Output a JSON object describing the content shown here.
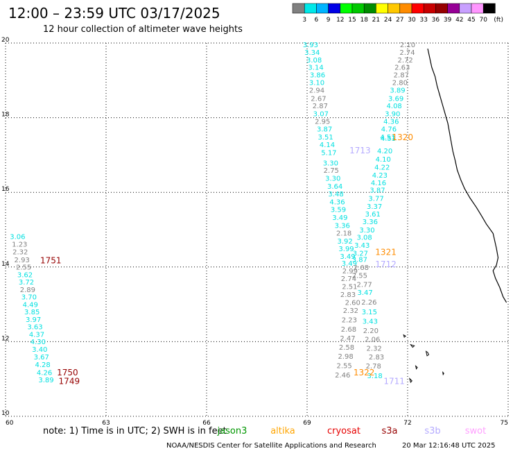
{
  "header": {
    "title": "12:00 – 23:59 UTC 03/17/2025",
    "subtitle": "12 hour collection of altimeter wave heights"
  },
  "colorbar": {
    "colors": [
      "#808080",
      "#00e8e8",
      "#00b4ff",
      "#0000e6",
      "#00ff00",
      "#00c800",
      "#008c00",
      "#ffff00",
      "#ffc800",
      "#ff8c00",
      "#ff0000",
      "#c80000",
      "#960000",
      "#960096",
      "#c8a0ff",
      "#ff96ff",
      "#000000"
    ],
    "labels": [
      "3",
      "6",
      "9",
      "12",
      "15",
      "18",
      "21",
      "24",
      "27",
      "30",
      "33",
      "36",
      "39",
      "42",
      "45",
      "70"
    ],
    "unit": "(ft)"
  },
  "footer": {
    "note": "note:  1) Time is in UTC; 2) SWH is in feet",
    "credit": "NOAA/NESDIS Center for Satellite Applications and Research",
    "timestamp": "20 Mar 12:16:48 UTC 2025"
  },
  "chart_data": {
    "type": "scatter",
    "xlim": [
      60,
      75
    ],
    "ylim": [
      10,
      20
    ],
    "x_ticks": [
      "60",
      "63",
      "66",
      "69",
      "72",
      "75"
    ],
    "y_ticks": [
      "10",
      "12",
      "14",
      "16",
      "18",
      "20"
    ],
    "grid": true,
    "legend_position": "bottom",
    "legend": [
      {
        "name": "jason3",
        "color": "#009600"
      },
      {
        "name": "altika",
        "color": "#ffa500"
      },
      {
        "name": "cryosat",
        "color": "#e60000"
      },
      {
        "name": "s3a",
        "color": "#960000"
      },
      {
        "name": "s3b",
        "color": "#b4aaff"
      },
      {
        "name": "swot",
        "color": "#ffa0ff"
      }
    ],
    "values": [
      {
        "x": 69.1,
        "y": 19.89,
        "text": "3.93",
        "color": "#00e0e0"
      },
      {
        "x": 69.15,
        "y": 19.68,
        "text": "3.34",
        "color": "#00e0e0"
      },
      {
        "x": 69.21,
        "y": 19.48,
        "text": "3.08",
        "color": "#00e0e0"
      },
      {
        "x": 69.26,
        "y": 19.28,
        "text": "3.14",
        "color": "#00e0e0"
      },
      {
        "x": 69.31,
        "y": 19.08,
        "text": "3.86",
        "color": "#00e0e0"
      },
      {
        "x": 69.29,
        "y": 18.88,
        "text": "3.10",
        "color": "#00e0e0"
      },
      {
        "x": 69.29,
        "y": 18.67,
        "text": "2.94",
        "color": "#808080"
      },
      {
        "x": 69.34,
        "y": 18.45,
        "text": "2.67",
        "color": "#808080"
      },
      {
        "x": 69.39,
        "y": 18.25,
        "text": "2.87",
        "color": "#808080"
      },
      {
        "x": 69.41,
        "y": 18.04,
        "text": "3.07",
        "color": "#00e0e0"
      },
      {
        "x": 69.46,
        "y": 17.83,
        "text": "2.95",
        "color": "#808080"
      },
      {
        "x": 69.52,
        "y": 17.63,
        "text": "3.87",
        "color": "#00e0e0"
      },
      {
        "x": 69.55,
        "y": 17.42,
        "text": "3.51",
        "color": "#00e0e0"
      },
      {
        "x": 69.6,
        "y": 17.21,
        "text": "4.14",
        "color": "#00e0e0"
      },
      {
        "x": 69.65,
        "y": 17.0,
        "text": "5.17",
        "color": "#00e0e0"
      },
      {
        "x": 69.7,
        "y": 16.72,
        "text": "3.30",
        "color": "#00e0e0"
      },
      {
        "x": 69.72,
        "y": 16.52,
        "text": "2.75",
        "color": "#808080"
      },
      {
        "x": 69.77,
        "y": 16.31,
        "text": "3.30",
        "color": "#00e0e0"
      },
      {
        "x": 69.83,
        "y": 16.1,
        "text": "3.64",
        "color": "#00e0e0"
      },
      {
        "x": 69.86,
        "y": 15.89,
        "text": "3.48",
        "color": "#00e0e0"
      },
      {
        "x": 69.9,
        "y": 15.68,
        "text": "4.36",
        "color": "#00e0e0"
      },
      {
        "x": 69.93,
        "y": 15.47,
        "text": "3.59",
        "color": "#00e0e0"
      },
      {
        "x": 69.98,
        "y": 15.26,
        "text": "3.49",
        "color": "#00e0e0"
      },
      {
        "x": 70.05,
        "y": 15.05,
        "text": "3.36",
        "color": "#00e0e0"
      },
      {
        "x": 70.1,
        "y": 14.84,
        "text": "2.18",
        "color": "#808080"
      },
      {
        "x": 70.13,
        "y": 14.63,
        "text": "3.92",
        "color": "#00e0e0"
      },
      {
        "x": 70.17,
        "y": 14.42,
        "text": "3.99",
        "color": "#00e0e0"
      },
      {
        "x": 70.21,
        "y": 14.22,
        "text": "3.49",
        "color": "#00e0e0"
      },
      {
        "x": 70.26,
        "y": 14.03,
        "text": "3.49",
        "color": "#00e0e0"
      },
      {
        "x": 70.28,
        "y": 13.83,
        "text": "2.99",
        "color": "#808080"
      },
      {
        "x": 70.24,
        "y": 13.62,
        "text": "2.74",
        "color": "#808080"
      },
      {
        "x": 70.27,
        "y": 13.41,
        "text": "2.51",
        "color": "#808080"
      },
      {
        "x": 70.22,
        "y": 13.2,
        "text": "2.83",
        "color": "#808080"
      },
      {
        "x": 70.36,
        "y": 12.98,
        "text": "2.60",
        "color": "#808080"
      },
      {
        "x": 70.3,
        "y": 12.77,
        "text": "2.32",
        "color": "#808080"
      },
      {
        "x": 70.26,
        "y": 12.52,
        "text": "2.23",
        "color": "#808080"
      },
      {
        "x": 70.24,
        "y": 12.27,
        "text": "2.68",
        "color": "#808080"
      },
      {
        "x": 70.21,
        "y": 12.03,
        "text": "2.47",
        "color": "#808080"
      },
      {
        "x": 70.18,
        "y": 11.78,
        "text": "2.58",
        "color": "#808080"
      },
      {
        "x": 70.15,
        "y": 11.54,
        "text": "2.98",
        "color": "#808080"
      },
      {
        "x": 70.11,
        "y": 11.29,
        "text": "2.55",
        "color": "#808080"
      },
      {
        "x": 70.06,
        "y": 11.04,
        "text": "2.46",
        "color": "#808080"
      },
      {
        "x": 72.0,
        "y": 19.89,
        "text": "2.10",
        "color": "#808080"
      },
      {
        "x": 71.99,
        "y": 19.68,
        "text": "2.74",
        "color": "#808080"
      },
      {
        "x": 71.93,
        "y": 19.48,
        "text": "2.72",
        "color": "#808080"
      },
      {
        "x": 71.84,
        "y": 19.28,
        "text": "2.63",
        "color": "#808080"
      },
      {
        "x": 71.81,
        "y": 19.08,
        "text": "2.87",
        "color": "#808080"
      },
      {
        "x": 71.77,
        "y": 18.88,
        "text": "2.80",
        "color": "#808080"
      },
      {
        "x": 71.7,
        "y": 18.67,
        "text": "3.89",
        "color": "#00e0e0"
      },
      {
        "x": 71.65,
        "y": 18.45,
        "text": "3.69",
        "color": "#00e0e0"
      },
      {
        "x": 71.6,
        "y": 18.25,
        "text": "4.08",
        "color": "#00e0e0"
      },
      {
        "x": 71.55,
        "y": 18.04,
        "text": "3.90",
        "color": "#00e0e0"
      },
      {
        "x": 71.51,
        "y": 17.83,
        "text": "4.36",
        "color": "#00e0e0"
      },
      {
        "x": 71.44,
        "y": 17.63,
        "text": "4.76",
        "color": "#00e0e0"
      },
      {
        "x": 71.41,
        "y": 17.42,
        "text": "4.51",
        "color": "#00e0e0"
      },
      {
        "x": 71.42,
        "y": 17.38,
        "text": "4.53",
        "color": "#00e0e0"
      },
      {
        "x": 71.32,
        "y": 17.04,
        "text": "4.20",
        "color": "#00e0e0"
      },
      {
        "x": 71.27,
        "y": 16.82,
        "text": "4.10",
        "color": "#00e0e0"
      },
      {
        "x": 71.24,
        "y": 16.61,
        "text": "4.22",
        "color": "#00e0e0"
      },
      {
        "x": 71.17,
        "y": 16.39,
        "text": "4.23",
        "color": "#00e0e0"
      },
      {
        "x": 71.13,
        "y": 16.19,
        "text": "4.16",
        "color": "#00e0e0"
      },
      {
        "x": 71.1,
        "y": 15.99,
        "text": "3.87",
        "color": "#00e0e0"
      },
      {
        "x": 71.06,
        "y": 15.77,
        "text": "3.77",
        "color": "#00e0e0"
      },
      {
        "x": 71.01,
        "y": 15.56,
        "text": "3.37",
        "color": "#00e0e0"
      },
      {
        "x": 70.96,
        "y": 15.35,
        "text": "3.61",
        "color": "#00e0e0"
      },
      {
        "x": 70.88,
        "y": 15.15,
        "text": "3.36",
        "color": "#00e0e0"
      },
      {
        "x": 70.79,
        "y": 14.93,
        "text": "3.30",
        "color": "#00e0e0"
      },
      {
        "x": 70.71,
        "y": 14.73,
        "text": "3.08",
        "color": "#00e0e0"
      },
      {
        "x": 70.64,
        "y": 14.52,
        "text": "3.43",
        "color": "#00e0e0"
      },
      {
        "x": 70.59,
        "y": 14.3,
        "text": "3.27",
        "color": "#00e0e0"
      },
      {
        "x": 70.57,
        "y": 14.14,
        "text": "3.87",
        "color": "#00e0e0"
      },
      {
        "x": 70.61,
        "y": 13.92,
        "text": "2.68",
        "color": "#808080"
      },
      {
        "x": 70.57,
        "y": 13.71,
        "text": "2.55",
        "color": "#808080"
      },
      {
        "x": 70.71,
        "y": 13.47,
        "text": "2.77",
        "color": "#808080"
      },
      {
        "x": 70.73,
        "y": 13.25,
        "text": "3.47",
        "color": "#00e0e0"
      },
      {
        "x": 70.85,
        "y": 12.99,
        "text": "2.26",
        "color": "#808080"
      },
      {
        "x": 70.86,
        "y": 12.73,
        "text": "3.15",
        "color": "#00e0e0"
      },
      {
        "x": 70.88,
        "y": 12.48,
        "text": "3.43",
        "color": "#00e0e0"
      },
      {
        "x": 70.9,
        "y": 12.23,
        "text": "2.20",
        "color": "#808080"
      },
      {
        "x": 70.95,
        "y": 12.0,
        "text": "2.06",
        "color": "#808080"
      },
      {
        "x": 71.0,
        "y": 11.76,
        "text": "2.32",
        "color": "#808080"
      },
      {
        "x": 71.07,
        "y": 11.52,
        "text": "2.83",
        "color": "#808080"
      },
      {
        "x": 70.98,
        "y": 11.28,
        "text": "2.78",
        "color": "#808080"
      },
      {
        "x": 71.02,
        "y": 11.02,
        "text": "3.18",
        "color": "#00e0e0"
      },
      {
        "x": 60.36,
        "y": 14.75,
        "text": "3.06",
        "color": "#00e0e0"
      },
      {
        "x": 60.42,
        "y": 14.54,
        "text": "1.23",
        "color": "#808080"
      },
      {
        "x": 60.44,
        "y": 14.34,
        "text": "2.32",
        "color": "#808080"
      },
      {
        "x": 60.49,
        "y": 14.13,
        "text": "2.93",
        "color": "#808080"
      },
      {
        "x": 60.54,
        "y": 13.93,
        "text": "2.55",
        "color": "#808080"
      },
      {
        "x": 60.58,
        "y": 13.73,
        "text": "3.62",
        "color": "#00e0e0"
      },
      {
        "x": 60.62,
        "y": 13.53,
        "text": "3.72",
        "color": "#00e0e0"
      },
      {
        "x": 60.66,
        "y": 13.33,
        "text": "2.89",
        "color": "#808080"
      },
      {
        "x": 60.7,
        "y": 13.13,
        "text": "3.70",
        "color": "#00e0e0"
      },
      {
        "x": 60.74,
        "y": 12.93,
        "text": "4.49",
        "color": "#00e0e0"
      },
      {
        "x": 60.79,
        "y": 12.73,
        "text": "3.85",
        "color": "#00e0e0"
      },
      {
        "x": 60.83,
        "y": 12.53,
        "text": "3.97",
        "color": "#00e0e0"
      },
      {
        "x": 60.88,
        "y": 12.33,
        "text": "3.63",
        "color": "#00e0e0"
      },
      {
        "x": 60.93,
        "y": 12.13,
        "text": "4.37",
        "color": "#00e0e0"
      },
      {
        "x": 60.97,
        "y": 11.93,
        "text": "4.30",
        "color": "#00e0e0"
      },
      {
        "x": 61.02,
        "y": 11.73,
        "text": "3.40",
        "color": "#00e0e0"
      },
      {
        "x": 61.07,
        "y": 11.52,
        "text": "3.67",
        "color": "#00e0e0"
      },
      {
        "x": 61.11,
        "y": 11.32,
        "text": "4.28",
        "color": "#00e0e0"
      },
      {
        "x": 61.16,
        "y": 11.11,
        "text": "4.26",
        "color": "#00e0e0"
      },
      {
        "x": 61.21,
        "y": 10.91,
        "text": "3.89",
        "color": "#00e0e0"
      }
    ],
    "pass_times": [
      {
        "x": 61.35,
        "y": 14.1,
        "text": "1751",
        "color": "#960000"
      },
      {
        "x": 61.85,
        "y": 11.1,
        "text": "1750",
        "color": "#960000"
      },
      {
        "x": 61.9,
        "y": 10.86,
        "text": "1749",
        "color": "#960000"
      },
      {
        "x": 71.85,
        "y": 17.4,
        "text": "1320",
        "color": "#ff8c00"
      },
      {
        "x": 70.58,
        "y": 17.04,
        "text": "1713",
        "color": "#b4aaff"
      },
      {
        "x": 71.35,
        "y": 14.32,
        "text": "1321",
        "color": "#ff8c00"
      },
      {
        "x": 71.35,
        "y": 14.0,
        "text": "1712",
        "color": "#b4aaff"
      },
      {
        "x": 70.7,
        "y": 11.1,
        "text": "1322",
        "color": "#ff8c00"
      },
      {
        "x": 71.6,
        "y": 10.86,
        "text": "1711",
        "color": "#b4aaff"
      }
    ],
    "coastline": [
      [
        72.6,
        19.85
      ],
      [
        72.66,
        19.6
      ],
      [
        72.72,
        19.35
      ],
      [
        72.82,
        19.1
      ],
      [
        72.88,
        18.85
      ],
      [
        72.96,
        18.6
      ],
      [
        73.04,
        18.35
      ],
      [
        73.12,
        18.1
      ],
      [
        73.2,
        17.85
      ],
      [
        73.25,
        17.6
      ],
      [
        73.3,
        17.35
      ],
      [
        73.35,
        17.1
      ],
      [
        73.42,
        16.85
      ],
      [
        73.48,
        16.6
      ],
      [
        73.58,
        16.35
      ],
      [
        73.7,
        16.1
      ],
      [
        73.86,
        15.85
      ],
      [
        74.05,
        15.6
      ],
      [
        74.2,
        15.38
      ],
      [
        74.35,
        15.15
      ],
      [
        74.55,
        14.9
      ],
      [
        74.6,
        14.7
      ],
      [
        74.65,
        14.5
      ],
      [
        74.7,
        14.25
      ],
      [
        74.65,
        14.05
      ],
      [
        74.55,
        13.9
      ],
      [
        74.62,
        13.7
      ],
      [
        74.75,
        13.45
      ],
      [
        74.85,
        13.2
      ],
      [
        74.95,
        13.05
      ]
    ],
    "islands": [
      [
        [
          72.09,
          11.92
        ],
        [
          72.2,
          11.89
        ],
        [
          72.15,
          11.85
        ],
        [
          72.09,
          11.92
        ]
      ],
      [
        [
          72.55,
          11.74
        ],
        [
          72.6,
          11.71
        ],
        [
          72.63,
          11.65
        ],
        [
          72.58,
          11.62
        ],
        [
          72.55,
          11.74
        ]
      ],
      [
        [
          72.06,
          11.01
        ],
        [
          72.13,
          10.95
        ],
        [
          72.09,
          10.91
        ],
        [
          72.06,
          11.01
        ]
      ],
      [
        [
          72.24,
          11.35
        ],
        [
          72.29,
          11.31
        ],
        [
          72.26,
          11.27
        ],
        [
          72.24,
          11.35
        ]
      ],
      [
        [
          73.05,
          11.18
        ],
        [
          73.08,
          11.15
        ],
        [
          73.06,
          11.12
        ],
        [
          73.05,
          11.18
        ]
      ],
      [
        [
          71.88,
          12.18
        ],
        [
          71.94,
          12.15
        ],
        [
          71.9,
          12.12
        ],
        [
          71.88,
          12.18
        ]
      ]
    ]
  }
}
